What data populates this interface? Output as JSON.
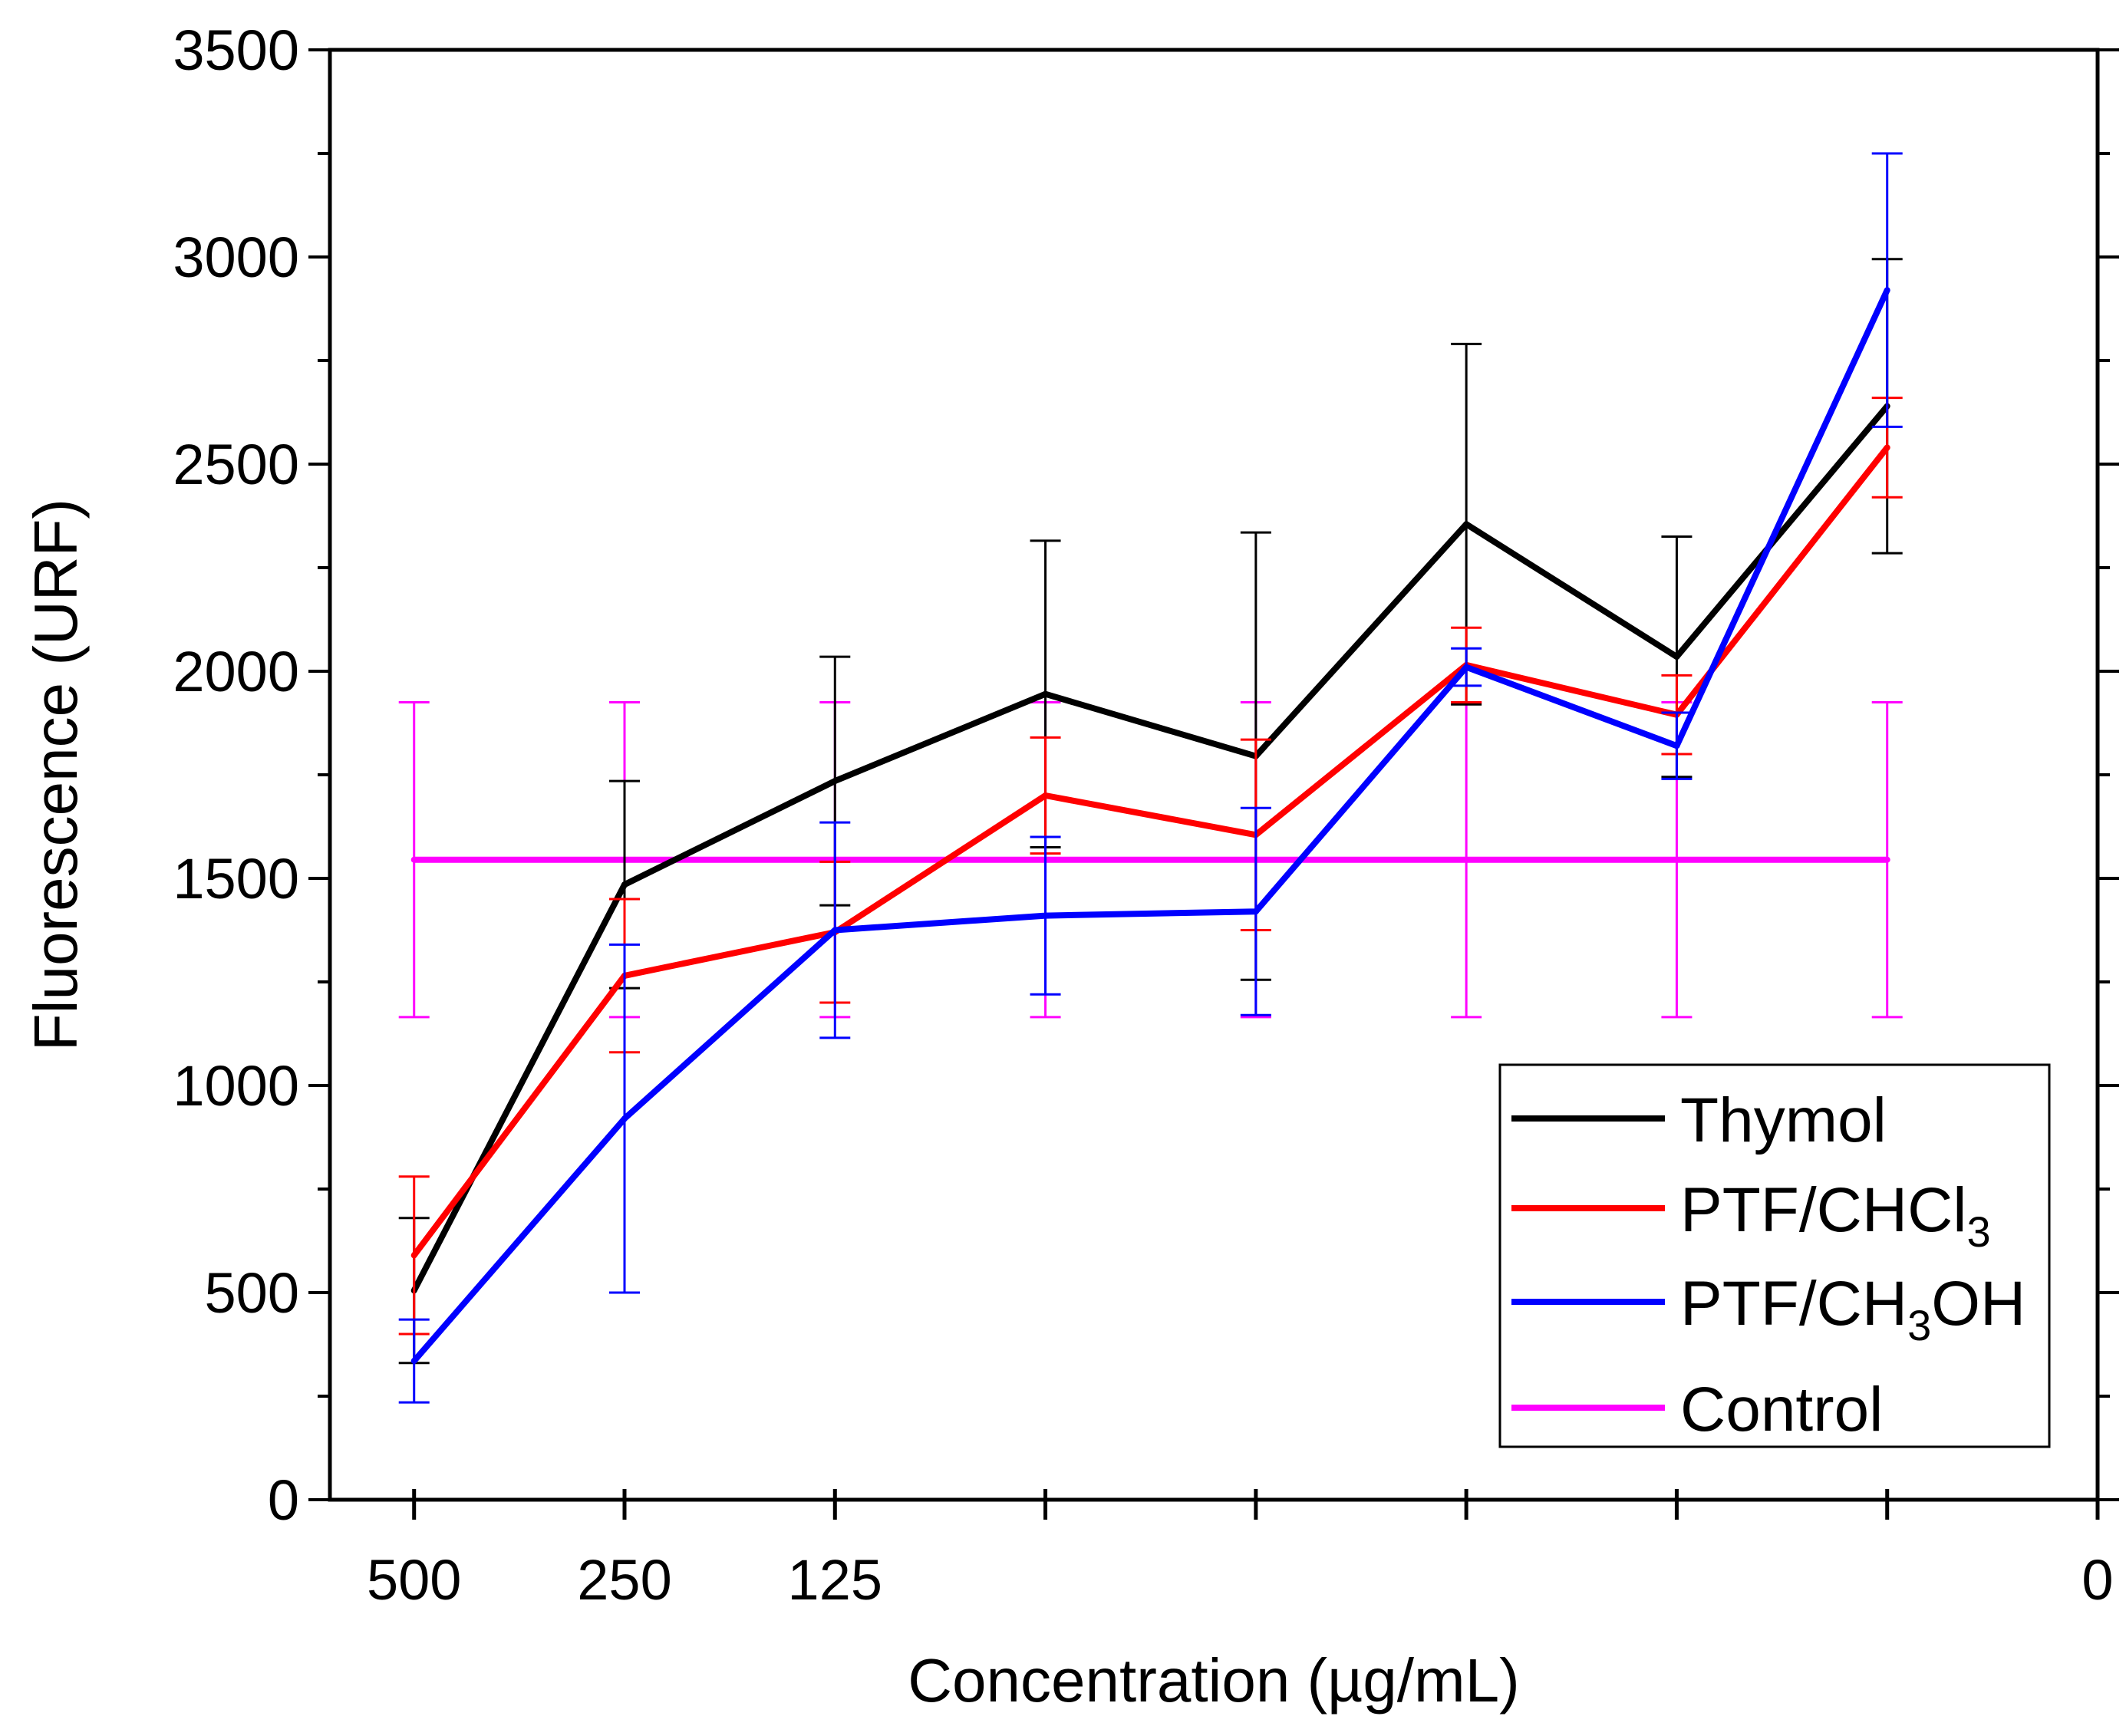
{
  "chart_data": {
    "type": "line",
    "title": "",
    "xlabel": "Concentration (µg/mL)",
    "ylabel": "Fluorescence (URF)",
    "ylim": [
      0,
      3500
    ],
    "y_ticks": [
      0,
      500,
      1000,
      1500,
      2000,
      2500,
      3000,
      3500
    ],
    "xlim": [
      -0.4,
      8.0
    ],
    "x_positions": [
      0,
      1,
      2,
      3,
      4,
      5,
      6,
      7
    ],
    "x_tick_marks": [
      0,
      1,
      2,
      3,
      4,
      5,
      6,
      7,
      8
    ],
    "x_tick_labels": [
      {
        "pos": 0,
        "label": "500"
      },
      {
        "pos": 1,
        "label": "250"
      },
      {
        "pos": 2,
        "label": "125"
      },
      {
        "pos": 8,
        "label": "0"
      }
    ],
    "grid": false,
    "legend_position": "bottom-right",
    "series": [
      {
        "name": "Thymol",
        "color": "#000000",
        "values": [
          505,
          1485,
          1735,
          1945,
          1795,
          2355,
          2035,
          2640
        ],
        "errors": [
          175,
          250,
          300,
          370,
          540,
          435,
          290,
          355
        ]
      },
      {
        "name": "PTF/CHCl3",
        "name_parts": {
          "base": "PTF/CHCl",
          "sub": "3",
          "tail": ""
        },
        "color": "#ff0000",
        "values": [
          590,
          1265,
          1370,
          1700,
          1605,
          2015,
          1895,
          2540
        ],
        "errors": [
          190,
          185,
          170,
          140,
          230,
          90,
          95,
          120
        ]
      },
      {
        "name": "PTF/CH3OH",
        "name_parts": {
          "base": "PTF/CH",
          "sub": "3",
          "tail": "OH"
        },
        "color": "#0000ff",
        "values": [
          335,
          920,
          1375,
          1410,
          1420,
          2010,
          1820,
          2920
        ],
        "errors": [
          100,
          420,
          260,
          190,
          250,
          45,
          80,
          330
        ]
      },
      {
        "name": "Control",
        "color": "#ff00ff",
        "values": [
          1545,
          1545,
          1545,
          1545,
          1545,
          1545,
          1545,
          1545
        ],
        "errors": [
          380,
          380,
          380,
          380,
          380,
          380,
          380,
          380
        ]
      }
    ]
  }
}
